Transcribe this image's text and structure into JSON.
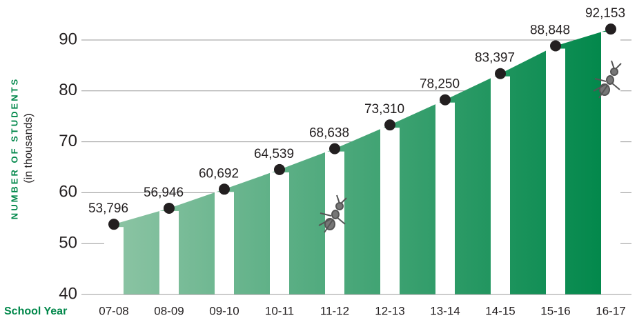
{
  "chart_data": {
    "type": "area",
    "y_label": "NUMBER OF STUDENTS",
    "y_sublabel": "(in thousands)",
    "x_label": "School Year",
    "categories": [
      "07-08",
      "08-09",
      "09-10",
      "10-11",
      "11-12",
      "12-13",
      "13-14",
      "14-15",
      "15-16",
      "16-17"
    ],
    "values": [
      53.796,
      56.946,
      60.692,
      64.539,
      68.638,
      73.31,
      78.25,
      83.397,
      88.848,
      92.153
    ],
    "value_labels": [
      "53,796",
      "56,946",
      "60,692",
      "64,539",
      "68,638",
      "73,310",
      "78,250",
      "83,397",
      "88,848",
      "92,153"
    ],
    "color": "#00874a",
    "ylim": [
      40,
      90
    ],
    "yticks": [
      40,
      50,
      60,
      70,
      80,
      90
    ],
    "grid": true
  }
}
